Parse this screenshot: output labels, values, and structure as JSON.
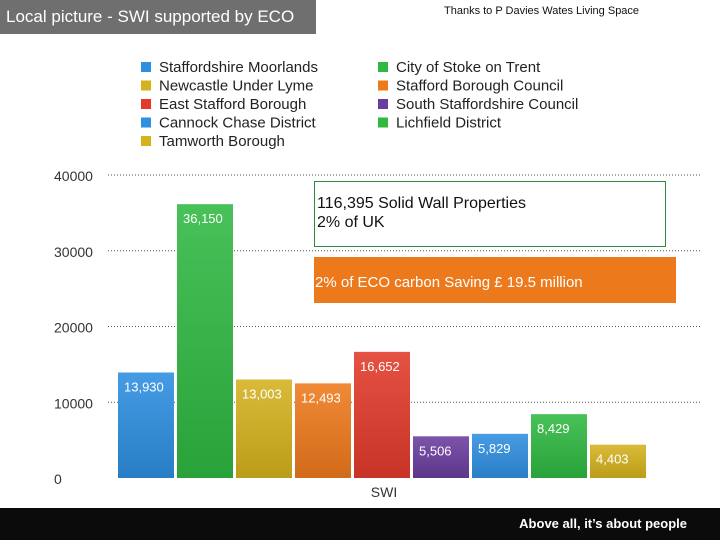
{
  "header": {
    "title": "Local picture - SWI supported by ECO",
    "credit": "Thanks to P Davies Wates Living Space"
  },
  "callout": {
    "line1": "116,395 Solid Wall Properties",
    "line2": "2% of UK"
  },
  "banner": {
    "text": "2% of ECO carbon Saving £ 19.5 million",
    "color": "#ec7a1c"
  },
  "footer": {
    "text": "Above all, it’s about people"
  },
  "chart_data": {
    "type": "bar",
    "xlabel": "SWI",
    "ylabel": "",
    "ylim": [
      0,
      40000
    ],
    "yticks": [
      0,
      10000,
      20000,
      30000,
      40000
    ],
    "grid": true,
    "legend_position": "top",
    "categories": [
      "SWI"
    ],
    "series": [
      {
        "name": "Staffordshire Moorlands",
        "value": 13930,
        "label": "13,930",
        "color": "#2d8fe0"
      },
      {
        "name": "City of Stoke on Trent",
        "value": 36150,
        "label": "36,150",
        "color": "#2fb842"
      },
      {
        "name": "Newcastle Under Lyme",
        "value": 13003,
        "label": "13,003",
        "color": "#d4b21e"
      },
      {
        "name": "Stafford Borough Council",
        "value": 12493,
        "label": "12,493",
        "color": "#ee7a1c"
      },
      {
        "name": "East Stafford Borough",
        "value": 16652,
        "label": "16,652",
        "color": "#e23a2b"
      },
      {
        "name": "South Staffordshire Council",
        "value": 5506,
        "label": "5,506",
        "color": "#6a3d9e"
      },
      {
        "name": "Cannock Chase District",
        "value": 5829,
        "label": "5,829",
        "color": "#2f8fe0"
      },
      {
        "name": "Lichfield District",
        "value": 8429,
        "label": "8,429",
        "color": "#2fb842"
      },
      {
        "name": "Tamworth Borough",
        "value": 4403,
        "label": "4,403",
        "color": "#d4b21e"
      }
    ],
    "legend_order": [
      "Staffordshire Moorlands",
      "City of Stoke on Trent",
      "Newcastle Under Lyme",
      "Stafford Borough Council",
      "East Stafford Borough",
      "South Staffordshire Council",
      "Cannock Chase District",
      "Lichfield District",
      "Tamworth Borough"
    ]
  }
}
